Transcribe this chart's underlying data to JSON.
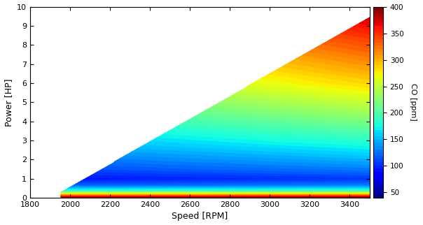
{
  "speed_min": 1950,
  "speed_max": 3450,
  "power_min": 0,
  "power_max": 10,
  "xlim": [
    1800,
    3500
  ],
  "ylim": [
    0,
    10
  ],
  "xlabel": "Speed [RPM]",
  "ylabel": "Power [HP]",
  "colorbar_label": "CO [ppm]",
  "clim_min": 40,
  "clim_max": 400,
  "colorbar_ticks": [
    50,
    100,
    150,
    200,
    250,
    300,
    350,
    400
  ],
  "xticks": [
    1800,
    2000,
    2200,
    2400,
    2600,
    2800,
    3000,
    3200,
    3400
  ],
  "yticks": [
    0,
    1,
    2,
    3,
    4,
    5,
    6,
    7,
    8,
    9,
    10
  ],
  "figsize": [
    6.04,
    3.22
  ],
  "dpi": 100,
  "envelope_slope_p1": [
    1950,
    0.3
  ],
  "envelope_slope_p2": [
    3450,
    9.2
  ]
}
